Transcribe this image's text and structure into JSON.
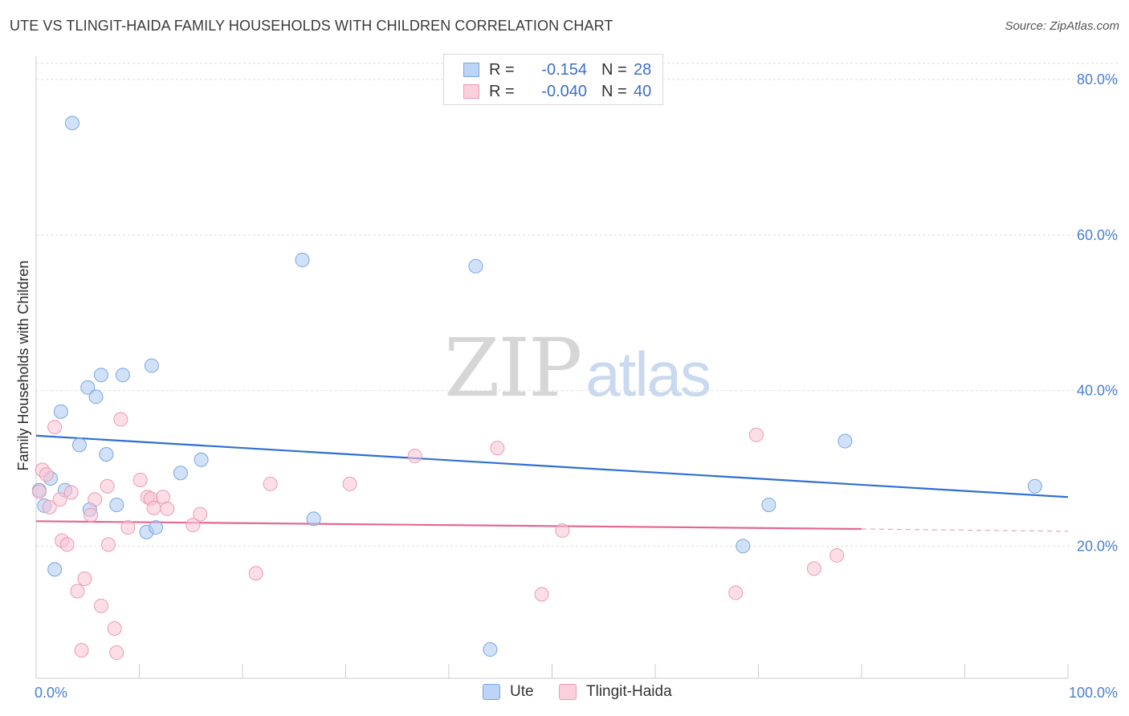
{
  "title": "UTE VS TLINGIT-HAIDA FAMILY HOUSEHOLDS WITH CHILDREN CORRELATION CHART",
  "source": "Source: ZipAtlas.com",
  "watermark": {
    "zip": "ZIP",
    "atlas": "atlas"
  },
  "legend": {
    "rows": [
      {
        "r_label": "R =",
        "r_value": "-0.154",
        "n_label": "N =",
        "n_value": "28",
        "color": "#a9c8f2",
        "border": "#7aa6e0"
      },
      {
        "r_label": "R =",
        "r_value": "-0.040",
        "n_label": "N =",
        "n_value": "40",
        "color": "#f9c3d2",
        "border": "#ec9ab3"
      }
    ]
  },
  "bottom_legend": [
    {
      "label": "Ute",
      "color": "#bcd4f5",
      "border": "#7aa6e0"
    },
    {
      "label": "Tlingit-Haida",
      "color": "#fbd0dc",
      "border": "#ec9ab3"
    }
  ],
  "chart_data": {
    "type": "scatter",
    "title": "UTE VS TLINGIT-HAIDA FAMILY HOUSEHOLDS WITH CHILDREN CORRELATION CHART",
    "xlabel": "",
    "ylabel": "Family Households with Children",
    "xlim": [
      0,
      100
    ],
    "ylim": [
      3,
      83
    ],
    "x_tick_labels": [
      "0.0%",
      "100.0%"
    ],
    "y_ticks": [
      20,
      40,
      60,
      80
    ],
    "y_tick_labels": [
      "20.0%",
      "40.0%",
      "60.0%",
      "80.0%"
    ],
    "grid": true,
    "series": [
      {
        "name": "Ute",
        "color": "#a9c8f2",
        "stroke": "#7aa6e0",
        "points": [
          [
            0.3,
            27.2
          ],
          [
            0.8,
            25.2
          ],
          [
            1.4,
            28.7
          ],
          [
            1.8,
            17.0
          ],
          [
            2.4,
            37.3
          ],
          [
            2.8,
            27.2
          ],
          [
            3.5,
            74.4
          ],
          [
            4.2,
            33.0
          ],
          [
            5.0,
            40.4
          ],
          [
            5.2,
            24.7
          ],
          [
            5.8,
            39.2
          ],
          [
            6.3,
            42.0
          ],
          [
            6.8,
            31.8
          ],
          [
            7.8,
            25.3
          ],
          [
            8.4,
            42.0
          ],
          [
            10.7,
            21.8
          ],
          [
            11.2,
            43.2
          ],
          [
            11.6,
            22.4
          ],
          [
            14.0,
            29.4
          ],
          [
            16.0,
            31.1
          ],
          [
            25.8,
            56.8
          ],
          [
            26.9,
            23.5
          ],
          [
            42.6,
            56.0
          ],
          [
            44.0,
            6.7
          ],
          [
            68.5,
            20.0
          ],
          [
            71.0,
            25.3
          ],
          [
            78.4,
            33.5
          ],
          [
            96.8,
            27.7
          ]
        ],
        "trend": {
          "x0": 0,
          "y0": 34.2,
          "x1": 100,
          "y1": 26.3
        }
      },
      {
        "name": "Tlingit-Haida",
        "color": "#f9c3d2",
        "stroke": "#ec9ab3",
        "points": [
          [
            0.3,
            27.0
          ],
          [
            0.6,
            29.8
          ],
          [
            1.0,
            29.2
          ],
          [
            1.3,
            25.0
          ],
          [
            1.8,
            35.3
          ],
          [
            2.3,
            26.0
          ],
          [
            2.5,
            20.7
          ],
          [
            3.0,
            20.2
          ],
          [
            3.4,
            26.9
          ],
          [
            4.0,
            14.2
          ],
          [
            4.4,
            6.6
          ],
          [
            4.7,
            15.8
          ],
          [
            5.3,
            24.0
          ],
          [
            5.7,
            26.0
          ],
          [
            6.3,
            12.3
          ],
          [
            6.9,
            27.7
          ],
          [
            7.0,
            20.2
          ],
          [
            7.6,
            9.4
          ],
          [
            7.8,
            6.3
          ],
          [
            8.2,
            36.3
          ],
          [
            8.9,
            22.4
          ],
          [
            10.1,
            28.5
          ],
          [
            10.8,
            26.3
          ],
          [
            11.1,
            26.1
          ],
          [
            11.4,
            24.9
          ],
          [
            12.3,
            26.3
          ],
          [
            12.7,
            24.8
          ],
          [
            15.2,
            22.7
          ],
          [
            15.9,
            24.1
          ],
          [
            21.3,
            16.5
          ],
          [
            22.7,
            28.0
          ],
          [
            30.4,
            28.0
          ],
          [
            36.7,
            31.6
          ],
          [
            44.7,
            32.6
          ],
          [
            49.0,
            13.8
          ],
          [
            51.0,
            22.0
          ],
          [
            67.8,
            14.0
          ],
          [
            69.8,
            34.3
          ],
          [
            75.4,
            17.1
          ],
          [
            77.6,
            18.8
          ]
        ],
        "trend": {
          "x0": 0,
          "y0": 23.2,
          "x1": 80,
          "y1": 22.2,
          "dash_x1": 100,
          "dash_y1": 21.9
        }
      }
    ]
  }
}
